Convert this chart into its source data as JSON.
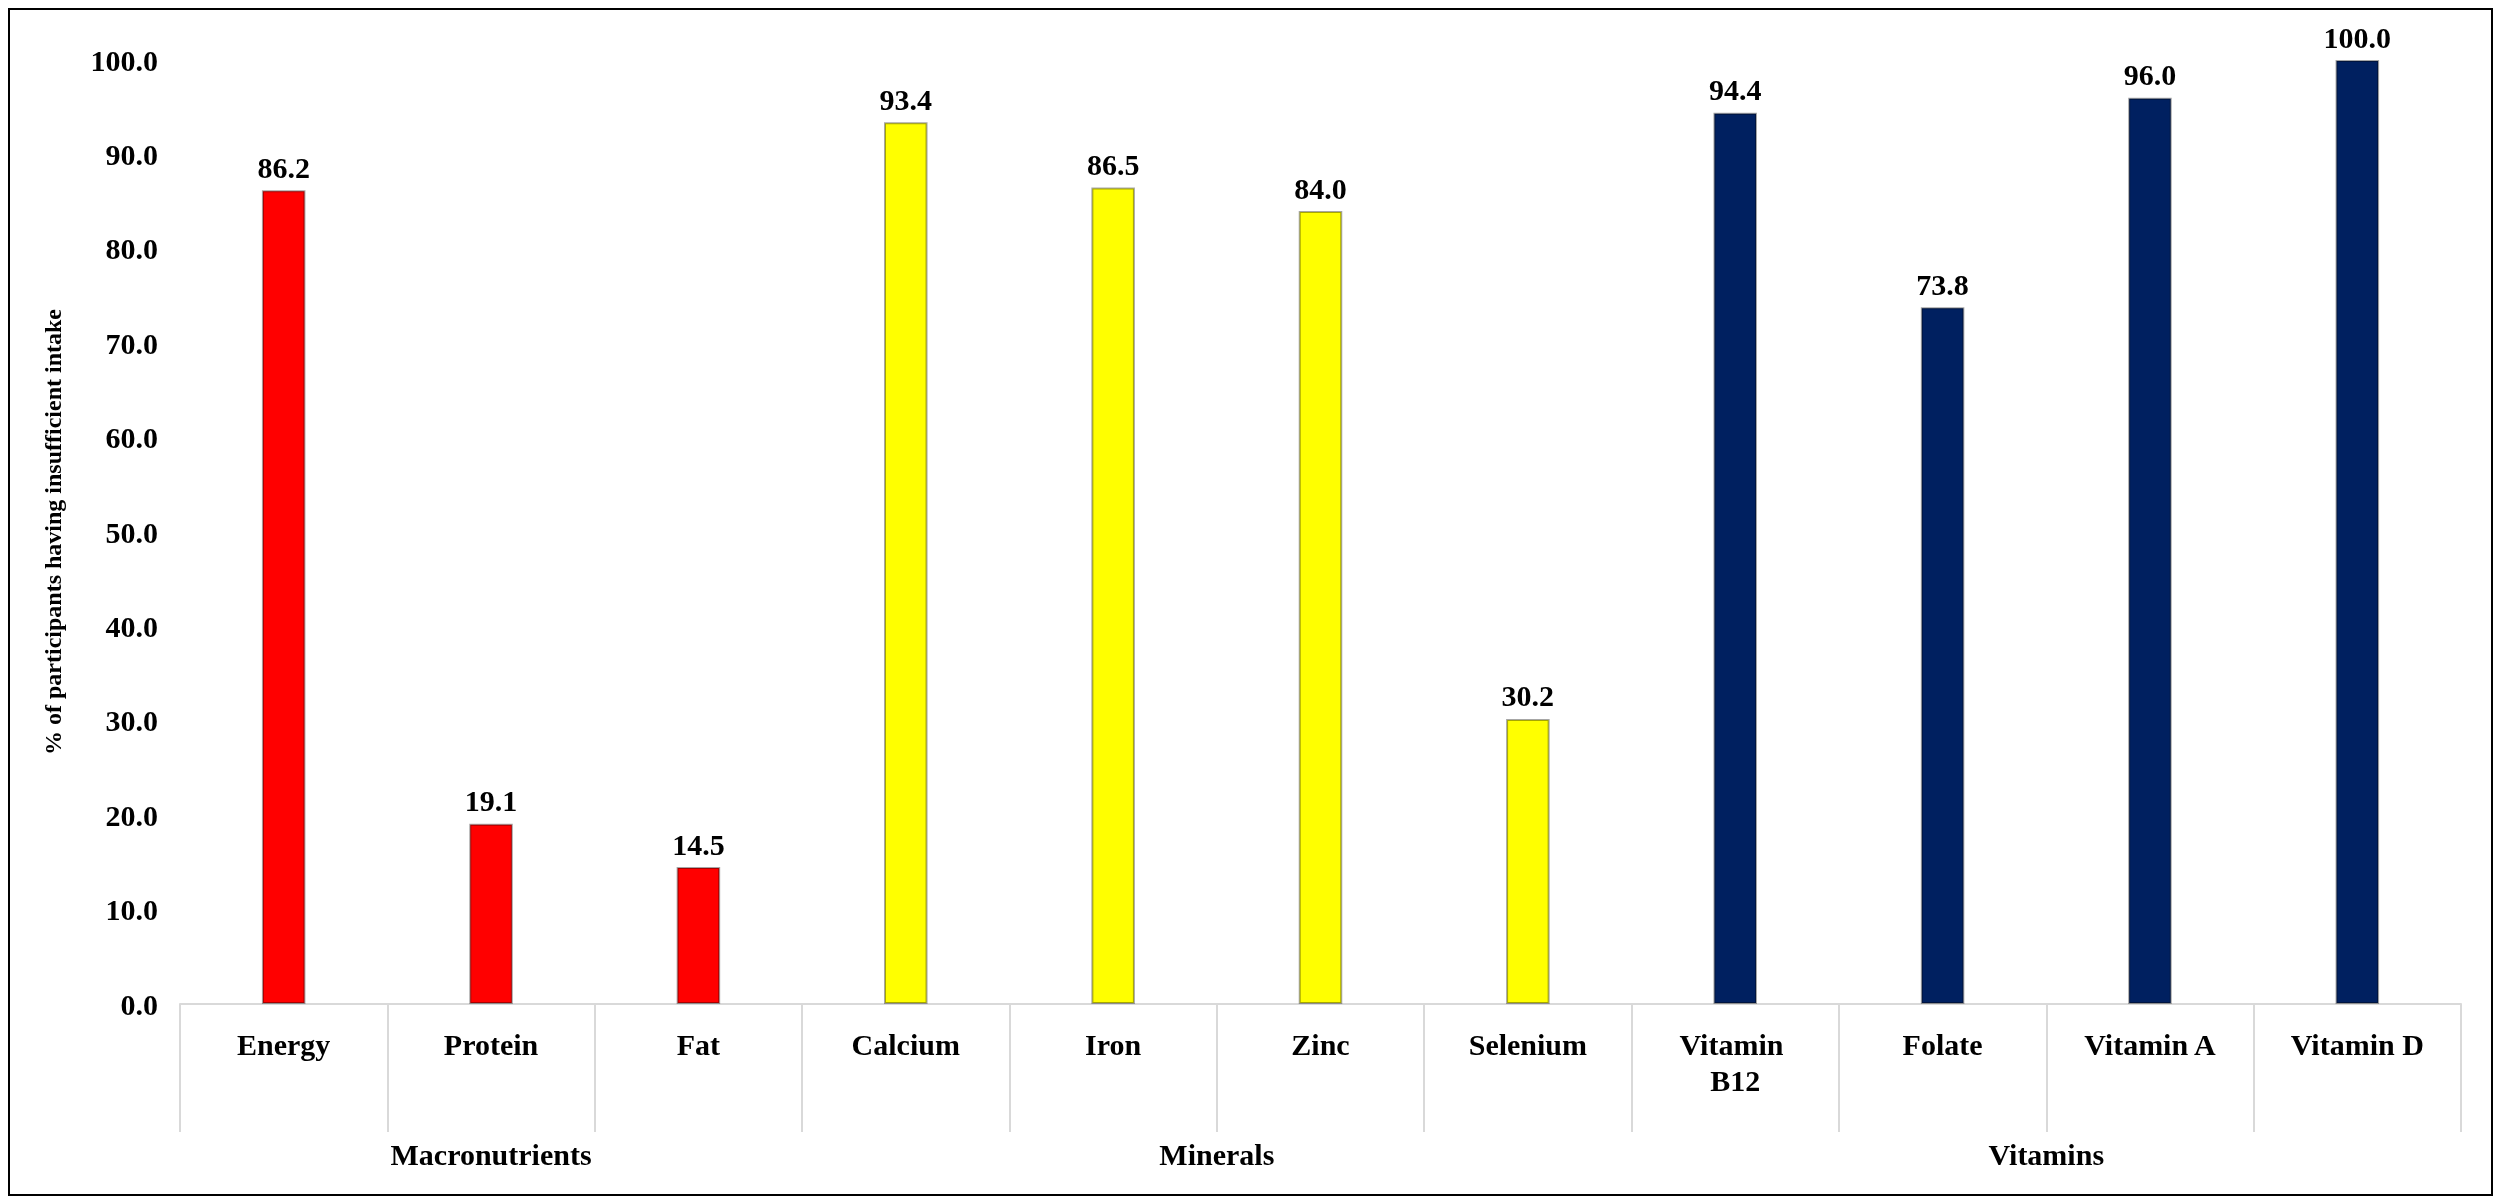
{
  "chart_data": {
    "type": "bar",
    "ylabel": "% of participants having insufficient intake",
    "categories": [
      "Energy",
      "Protein",
      "Fat",
      "Calcium",
      "Iron",
      "Zinc",
      "Selenium",
      "Vitamin B12",
      "Folate",
      "Vitamin A",
      "Vitamin D"
    ],
    "values": [
      86.2,
      19.1,
      14.5,
      93.4,
      86.5,
      84.0,
      30.2,
      94.4,
      73.8,
      96.0,
      100.0
    ],
    "colors": [
      "#ff0000",
      "#ff0000",
      "#ff0000",
      "#ffff00",
      "#ffff00",
      "#ffff00",
      "#ffff00",
      "#002060",
      "#002060",
      "#002060",
      "#002060"
    ],
    "value_labels": [
      "86.2",
      "19.1",
      "14.5",
      "93.4",
      "86.5",
      "84.0",
      "30.2",
      "94.4",
      "73.8",
      "96.0",
      "100.0"
    ],
    "annotations": [
      "Macronutrients",
      "Minerals",
      "Vitamins"
    ],
    "ylim": [
      0,
      100
    ],
    "yticks": [
      {
        "value": 0,
        "label": "0.0"
      },
      {
        "value": 10,
        "label": "10.0"
      },
      {
        "value": 20,
        "label": "20.0"
      },
      {
        "value": 30,
        "label": "30.0"
      },
      {
        "value": 40,
        "label": "40.0"
      },
      {
        "value": 50,
        "label": "50.0"
      },
      {
        "value": 60,
        "label": "60.0"
      },
      {
        "value": 70,
        "label": "70.0"
      },
      {
        "value": 80,
        "label": "80.0"
      },
      {
        "value": 90,
        "label": "90.0"
      },
      {
        "value": 100,
        "label": "100.0"
      }
    ],
    "grid": false
  }
}
